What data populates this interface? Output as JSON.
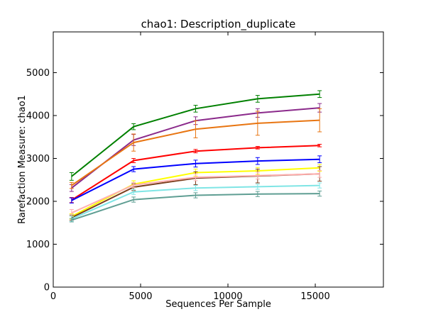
{
  "chart_data": {
    "type": "line",
    "title": "chao1: Description_duplicate",
    "xlabel": "Sequences Per Sample",
    "ylabel": "Rarefaction Measure: chao1",
    "xlim": [
      0,
      18900
    ],
    "ylim": [
      0,
      5950
    ],
    "x_ticks": [
      0,
      5000,
      10000,
      15000
    ],
    "y_ticks": [
      0,
      1000,
      2000,
      3000,
      4000,
      5000
    ],
    "x_tick_labels": [
      "0",
      "5000",
      "10000",
      "15000"
    ],
    "y_tick_labels": [
      "0",
      "1000",
      "2000",
      "3000",
      "4000",
      "5000"
    ],
    "grid": false,
    "legend": "none",
    "x": [
      1050,
      4600,
      8150,
      11700,
      15250
    ],
    "series": [
      {
        "color": "#008000",
        "values": [
          2580,
          3740,
          4160,
          4390,
          4500
        ],
        "errors": [
          90,
          70,
          80,
          80,
          80
        ]
      },
      {
        "color": "#8B2A8B",
        "values": [
          2310,
          3430,
          3880,
          4060,
          4180
        ],
        "errors": [
          80,
          130,
          90,
          100,
          100
        ]
      },
      {
        "color": "#E87511",
        "values": [
          2370,
          3370,
          3680,
          3820,
          3890
        ],
        "errors": [
          70,
          200,
          200,
          280,
          270
        ]
      },
      {
        "color": "#FF0000",
        "values": [
          2030,
          2950,
          3170,
          3250,
          3300
        ],
        "errors": [
          60,
          50,
          40,
          30,
          30
        ]
      },
      {
        "color": "#0000FF",
        "values": [
          2020,
          2750,
          2880,
          2940,
          2980
        ],
        "errors": [
          60,
          60,
          80,
          80,
          80
        ]
      },
      {
        "color": "#FFFF00",
        "values": [
          1650,
          2400,
          2670,
          2710,
          2780
        ],
        "errors": [
          60,
          80,
          80,
          80,
          80
        ]
      },
      {
        "color": "#7B3F1E",
        "values": [
          1620,
          2330,
          2540,
          2590,
          2640
        ],
        "errors": [
          60,
          80,
          150,
          160,
          170
        ]
      },
      {
        "color": "#FFB0B0",
        "values": [
          1730,
          2380,
          2560,
          2600,
          2640
        ],
        "errors": [
          80,
          60,
          80,
          80,
          80
        ]
      },
      {
        "color": "#7FE5E5",
        "values": [
          1590,
          2220,
          2310,
          2340,
          2370
        ],
        "errors": [
          60,
          60,
          60,
          60,
          60
        ]
      },
      {
        "color": "#5F9E93",
        "values": [
          1560,
          2040,
          2140,
          2170,
          2180
        ],
        "errors": [
          40,
          60,
          60,
          60,
          60
        ]
      }
    ]
  }
}
